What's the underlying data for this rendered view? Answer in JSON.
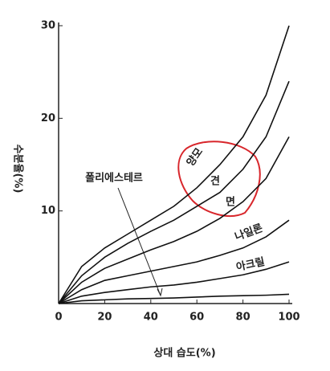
{
  "chart_data": {
    "type": "line",
    "x_label": "상대 습도(%)",
    "y_label": "수분율(%)",
    "annotation": "폴리에스테르",
    "x": [
      0,
      10,
      20,
      30,
      40,
      50,
      60,
      70,
      80,
      90,
      100
    ],
    "series": [
      {
        "name": "양모",
        "color": "#111111",
        "values": [
          0,
          4,
          6,
          7.5,
          9,
          10.5,
          12.5,
          15,
          18,
          22.5,
          30
        ]
      },
      {
        "name": "견",
        "color": "#111111",
        "values": [
          0,
          3,
          5,
          6.5,
          7.8,
          9,
          10.5,
          12,
          14.5,
          18,
          24
        ]
      },
      {
        "name": "면",
        "color": "#111111",
        "values": [
          0,
          2.3,
          3.8,
          4.8,
          5.8,
          6.7,
          7.8,
          9.2,
          11,
          13.5,
          18
        ]
      },
      {
        "name": "나일론",
        "color": "#111111",
        "values": [
          0,
          1.5,
          2.5,
          3,
          3.5,
          4,
          4.5,
          5.2,
          6,
          7.2,
          9
        ]
      },
      {
        "name": "아크릴",
        "color": "#111111",
        "values": [
          0,
          0.8,
          1.2,
          1.5,
          1.8,
          2,
          2.3,
          2.7,
          3.1,
          3.7,
          4.5
        ]
      },
      {
        "name": "",
        "color": "#111111",
        "values": [
          0,
          0.3,
          0.4,
          0.5,
          0.55,
          0.6,
          0.7,
          0.8,
          0.85,
          0.9,
          1
        ]
      }
    ],
    "xlim": [
      0,
      100
    ],
    "ylim": [
      0,
      30
    ],
    "xticks": [
      0,
      20,
      40,
      60,
      80,
      100
    ],
    "yticks": [
      10,
      20,
      30
    ]
  }
}
